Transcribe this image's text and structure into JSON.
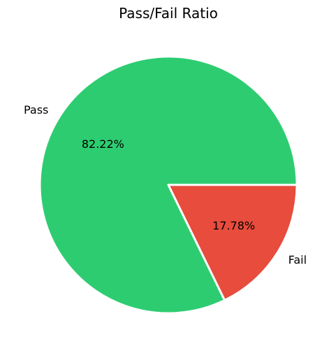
{
  "chart_data": {
    "type": "pie",
    "title": "Pass/Fail Ratio",
    "categories": [
      "Pass",
      "Fail"
    ],
    "values": [
      82.22,
      17.78
    ],
    "value_labels": [
      "82.22%",
      "17.78%"
    ],
    "colors": [
      "#2ecc71",
      "#e74c3c"
    ],
    "slice_edge_color": "#ffffff",
    "start_angle": 0,
    "direction": "counterclockwise",
    "legend": "none"
  }
}
